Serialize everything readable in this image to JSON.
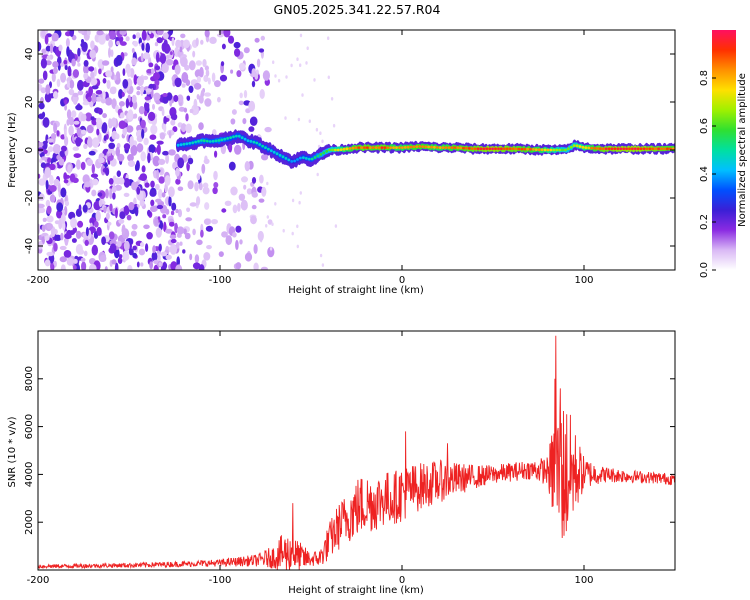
{
  "title": "GN05.2025.341.22.57.R04",
  "chart_data": [
    {
      "type": "heatmap",
      "xlabel": "Height of straight line (km)",
      "ylabel": "Frequency (Hz)",
      "xlim": [
        -200,
        150
      ],
      "ylim": [
        -50,
        50
      ],
      "xticks": [
        -200,
        -100,
        0,
        100
      ],
      "yticks": [
        -40,
        -20,
        0,
        20,
        40
      ],
      "colorbar": {
        "label": "Normalized spectral amplitude",
        "range": [
          0.0,
          1.0
        ],
        "ticks": [
          0.0,
          0.2,
          0.4,
          0.6,
          0.8
        ],
        "colors": [
          "#ffffff",
          "#d9b8f5",
          "#8a2be2",
          "#3a1fd6",
          "#0050ff",
          "#00c0ff",
          "#00e0a0",
          "#30e030",
          "#a0f000",
          "#ffe000",
          "#ff9000",
          "#ff3000",
          "#ff1060"
        ]
      },
      "noise_region_x": [
        -200,
        -80
      ],
      "signal_start_x": -123,
      "ridge": {
        "x": [
          -123,
          -115,
          -110,
          -105,
          -100,
          -95,
          -90,
          -85,
          -80,
          -75,
          -70,
          -65,
          -60,
          -55,
          -50,
          -45,
          -40,
          -35,
          -30,
          -25,
          -20,
          -15,
          -10,
          -5,
          0,
          10,
          20,
          30,
          40,
          50,
          60,
          70,
          80,
          90,
          95,
          100,
          110,
          120,
          130,
          140,
          150
        ],
        "freq": [
          2,
          3,
          4,
          3.5,
          4,
          5,
          6,
          4,
          3,
          1,
          -1,
          -3,
          -5,
          -3,
          -4,
          -2,
          0,
          0,
          0.5,
          1,
          1,
          1,
          1,
          1,
          1,
          1.5,
          1,
          1,
          0.5,
          0.5,
          0.5,
          0.3,
          0,
          0,
          2,
          1,
          0.5,
          0.5,
          0.5,
          0.5,
          0.5
        ],
        "amplitude": [
          0.45,
          0.5,
          0.55,
          0.5,
          0.55,
          0.5,
          0.5,
          0.45,
          0.5,
          0.5,
          0.45,
          0.5,
          0.4,
          0.45,
          0.5,
          0.6,
          0.65,
          0.75,
          0.85,
          0.9,
          0.95,
          0.9,
          0.95,
          0.85,
          0.85,
          0.9,
          0.85,
          0.9,
          0.95,
          1.0,
          0.95,
          0.9,
          0.8,
          0.65,
          0.7,
          0.8,
          0.95,
          1.0,
          1.0,
          0.95,
          0.9
        ]
      }
    },
    {
      "type": "line",
      "xlabel": "Height of straight line (km)",
      "ylabel": "SNR (10 * v/v)",
      "xlim": [
        -200,
        150
      ],
      "ylim": [
        0,
        10000
      ],
      "xticks": [
        -200,
        -100,
        0,
        100
      ],
      "yticks": [
        2000,
        4000,
        6000,
        8000
      ],
      "series": [
        {
          "name": "SNR",
          "color": "#ee2222",
          "envelope": {
            "x": [
              -200,
              -150,
              -120,
              -100,
              -80,
              -70,
              -65,
              -60,
              -55,
              -50,
              -45,
              -40,
              -35,
              -30,
              -25,
              -20,
              -15,
              -10,
              -5,
              0,
              10,
              20,
              30,
              40,
              50,
              60,
              70,
              80,
              85,
              90,
              95,
              100,
              110,
              120,
              130,
              140,
              150
            ],
            "base": [
              150,
              200,
              250,
              300,
              400,
              550,
              700,
              650,
              500,
              450,
              500,
              1200,
              1800,
              2200,
              2600,
              2800,
              2800,
              3000,
              3000,
              3200,
              3500,
              3700,
              3800,
              3900,
              4000,
              4100,
              4200,
              4150,
              4100,
              4000,
              4100,
              4050,
              4000,
              3950,
              3900,
              3850,
              3800
            ],
            "spread": [
              80,
              100,
              120,
              150,
              250,
              500,
              900,
              800,
              600,
              300,
              400,
              800,
              1000,
              1100,
              1300,
              1300,
              1200,
              1200,
              1100,
              1200,
              1000,
              900,
              700,
              500,
              400,
              400,
              400,
              600,
              3000,
              3200,
              1800,
              700,
              350,
              300,
              250,
              250,
              250
            ]
          },
          "peaks": [
            {
              "x": 84.5,
              "y": 9800
            },
            {
              "x": 84,
              "y": 8000
            },
            {
              "x": 87,
              "y": 7600
            },
            {
              "x": 2,
              "y": 5800
            },
            {
              "x": -60,
              "y": 2800
            },
            {
              "x": 25,
              "y": 5300
            }
          ]
        }
      ]
    }
  ]
}
